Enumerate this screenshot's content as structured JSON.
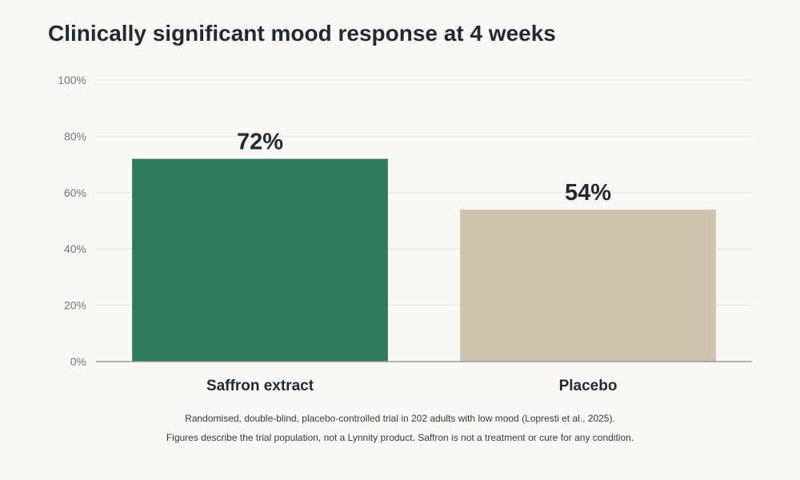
{
  "chart_data": {
    "type": "bar",
    "title": "Clinically significant mood response at 4 weeks",
    "categories": [
      "Saffron extract",
      "Placebo"
    ],
    "values": [
      72,
      54
    ],
    "value_labels": [
      "72%",
      "54%"
    ],
    "colors": [
      "#2e7b5d",
      "#cfc4ae"
    ],
    "ylim": [
      0,
      100
    ],
    "yticks": [
      0,
      20,
      40,
      60,
      80,
      100
    ],
    "ytick_labels": [
      "0%",
      "20%",
      "40%",
      "60%",
      "80%",
      "100%"
    ],
    "xlabel": "",
    "ylabel": "",
    "grid": true,
    "legend": "none"
  },
  "footnotes": {
    "line1": "Randomised, double-blind, placebo-controlled trial in 202 adults with low mood (Lopresti et al., 2025).",
    "line2": "Figures describe the trial population, not a Lynnity product. Saffron is not a treatment or cure for any condition."
  },
  "colors": {
    "background": "#f9f8f5",
    "title_text": "#1f2b31",
    "gridline": "#e8e6e1",
    "axis_line": "#9a9a9a"
  }
}
